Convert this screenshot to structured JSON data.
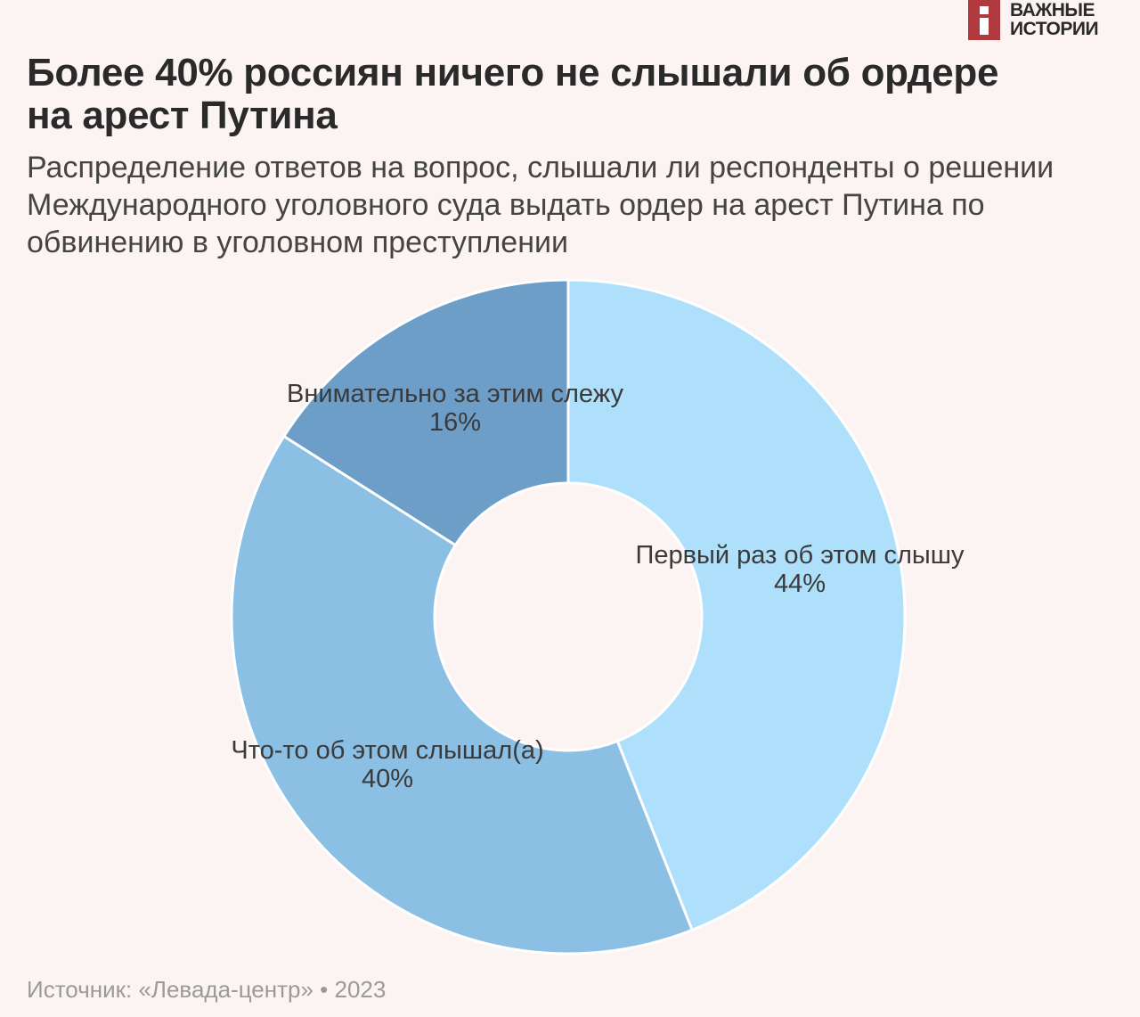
{
  "brand": {
    "line1": "ВАЖНЫЕ",
    "line2": "ИСТОРИИ"
  },
  "header": {
    "title": "Более 40% россиян ничего не слышали об ордере на арест Путина",
    "subtitle": "Распределение ответов на вопрос, слышали ли респонденты о решении Международного уголовного суда выдать ордер на арест Путина по обвинению в уголовном преступлении"
  },
  "footer": {
    "source": "Источник: «Левада-центр» • 2023"
  },
  "chart_data": {
    "type": "pie",
    "title": "Более 40% россиян ничего не слышали об ордере на арест Путина",
    "donut": true,
    "categories": [
      "Первый раз об этом слышу",
      "Что-то об этом слышал(а)",
      "Внимательно за этим слежу"
    ],
    "values": [
      44,
      40,
      16
    ],
    "value_labels": [
      "44%",
      "40%",
      "16%"
    ],
    "colors": [
      "#aee0fb",
      "#8bbfe4",
      "#6d9ec8"
    ],
    "start_angle_deg": 0,
    "direction": "clockwise"
  }
}
